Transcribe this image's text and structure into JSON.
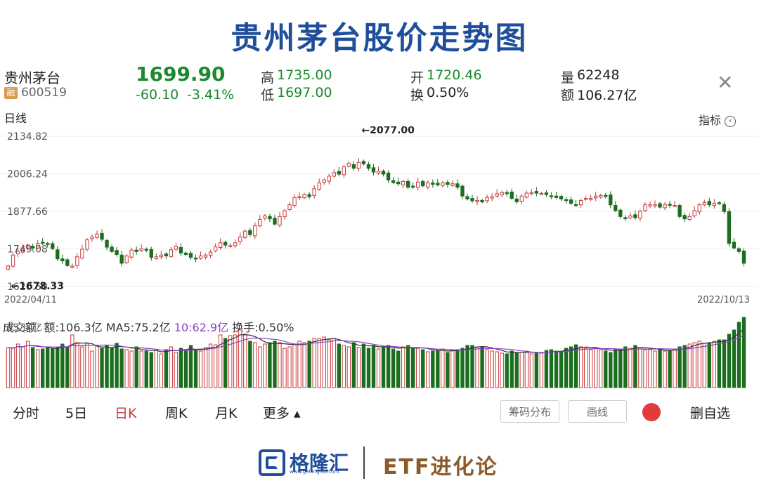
{
  "title": "贵州茅台股价走势图",
  "stock": {
    "name": "贵州茅台",
    "badge": "融",
    "code": "600519",
    "price": "1699.90",
    "change": "-60.10",
    "change_pct": "-3.41%",
    "high_label": "高",
    "high": "1735.00",
    "low_label": "低",
    "low": "1697.00",
    "open_label": "开",
    "open": "1720.46",
    "turnover_label": "换",
    "turnover": "0.50%",
    "volume_label": "量",
    "volume": "62248",
    "amount_label": "额",
    "amount": "106.27亿"
  },
  "close_icon": "close-icon",
  "daily_label": "日线",
  "indicator_label": "指标",
  "period": {
    "start": "2022/04/11",
    "end": "2022/10/13"
  },
  "volume_legend": {
    "prefix": "成交额: 额:106.3亿 MA5:75.2亿 ",
    "ma10": "10:62.9亿",
    "suffix": " 换手:0.50%"
  },
  "volume_scale_label": "85.14亿",
  "tabs": [
    "分时",
    "5日",
    "日K",
    "周K",
    "月K",
    "更多 ▴"
  ],
  "active_tab": "日K",
  "buttons": {
    "chips": "筹码分布",
    "draw": "画线",
    "remove": "删自选"
  },
  "logo": {
    "text": "格隆汇",
    "url": "www.gelonghui.com"
  },
  "footer_right": "ETF进化论",
  "colors": {
    "up": "#c9383b",
    "down": "#1b6e1e",
    "accent": "#1f4e9b",
    "ma5": "#333333",
    "ma10": "#8a3fc9"
  },
  "chart_data": {
    "type": "candlestick",
    "x_start": "2022/04/11",
    "x_end": "2022/10/13",
    "y_ticks": [
      2134.82,
      2006.24,
      1877.66,
      1749.08,
      1620.5
    ],
    "ylim": [
      1620.5,
      2134.82
    ],
    "annotations": [
      {
        "text": "←2077.00",
        "value": 2077.0,
        "type": "max"
      },
      {
        "text": "←1678.33",
        "value": 1678.33,
        "type": "min"
      }
    ],
    "closes": [
      1690,
      1728,
      1740,
      1750,
      1762,
      1752,
      1768,
      1770,
      1765,
      1750,
      1715,
      1708,
      1692,
      1690,
      1722,
      1748,
      1780,
      1790,
      1800,
      1782,
      1755,
      1740,
      1730,
      1700,
      1725,
      1745,
      1740,
      1750,
      1745,
      1720,
      1722,
      1728,
      1725,
      1746,
      1758,
      1735,
      1730,
      1720,
      1715,
      1725,
      1728,
      1738,
      1756,
      1770,
      1762,
      1760,
      1770,
      1790,
      1810,
      1798,
      1828,
      1850,
      1862,
      1852,
      1834,
      1860,
      1880,
      1900,
      1925,
      1928,
      1935,
      1928,
      1955,
      1975,
      1985,
      1998,
      2010,
      2005,
      2030,
      2042,
      2025,
      2045,
      2040,
      2025,
      2012,
      2015,
      2005,
      1985,
      1976,
      1972,
      1980,
      1960,
      1962,
      1978,
      1965,
      1975,
      1970,
      1968,
      1975,
      1970,
      1972,
      1960,
      1930,
      1920,
      1914,
      1915,
      1910,
      1925,
      1928,
      1938,
      1942,
      1940,
      1922,
      1910,
      1930,
      1940,
      1942,
      1940,
      1939,
      1935,
      1930,
      1925,
      1920,
      1915,
      1905,
      1900,
      1915,
      1922,
      1922,
      1930,
      1932,
      1930,
      1900,
      1880,
      1860,
      1855,
      1862,
      1856,
      1878,
      1900,
      1900,
      1900,
      1892,
      1900,
      1900,
      1898,
      1860,
      1852,
      1860,
      1880,
      1900,
      1908,
      1900,
      1905,
      1905,
      1877,
      1768,
      1752,
      1740,
      1700
    ],
    "volumes": [
      57,
      56,
      62,
      58,
      66,
      57,
      54,
      55,
      57,
      56,
      57,
      62,
      58,
      75,
      64,
      58,
      63,
      52,
      59,
      56,
      60,
      57,
      63,
      55,
      54,
      52,
      58,
      52,
      52,
      50,
      53,
      48,
      54,
      58,
      50,
      56,
      53,
      60,
      53,
      52,
      57,
      62,
      61,
      75,
      70,
      74,
      75,
      82,
      76,
      66,
      64,
      58,
      62,
      64,
      66,
      64,
      56,
      58,
      62,
      66,
      64,
      66,
      70,
      70,
      72,
      68,
      70,
      62,
      60,
      58,
      64,
      57,
      62,
      56,
      60,
      55,
      58,
      60,
      55,
      52,
      58,
      60,
      56,
      56,
      54,
      51,
      52,
      52,
      55,
      50,
      53,
      54,
      56,
      60,
      60,
      58,
      58,
      54,
      52,
      51,
      49,
      48,
      52,
      50,
      50,
      52,
      48,
      50,
      49,
      53,
      54,
      52,
      50,
      56,
      58,
      61,
      58,
      56,
      54,
      56,
      54,
      52,
      50,
      54,
      54,
      58,
      56,
      60,
      57,
      54,
      54,
      52,
      55,
      52,
      52,
      55,
      58,
      60,
      62,
      64,
      66,
      63,
      64,
      66,
      68,
      68,
      76,
      82,
      93,
      100
    ]
  }
}
